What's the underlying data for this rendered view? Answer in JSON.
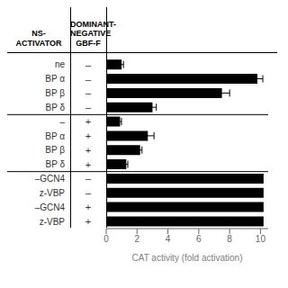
{
  "chart_data": {
    "type": "bar",
    "orientation": "horizontal",
    "column_headers": [
      "NS-\nACTIVATOR",
      "DOMINANT-\nNEGATIVE\nGBF-F"
    ],
    "categories": [
      "ne",
      "BP α",
      "BP β",
      "BP δ",
      "–",
      "BP α",
      "BP β",
      "BP δ",
      "–GCN4",
      "z-VBP",
      "–GCN4",
      "z-VBP"
    ],
    "category_signs": [
      "–",
      "–",
      "–",
      "–",
      "+",
      "+",
      "+",
      "+",
      "–",
      "–",
      "+",
      "+"
    ],
    "values": [
      1.0,
      9.8,
      7.5,
      3.0,
      0.9,
      2.7,
      2.2,
      1.3,
      10.2,
      10.2,
      10.2,
      10.2
    ],
    "errors": [
      0.12,
      0.35,
      0.5,
      0.25,
      0.09,
      0.4,
      0.12,
      0.1,
      0.0,
      0.0,
      0.0,
      0.0
    ],
    "color": "#000000",
    "xlabel": "CAT activity (fold activation)",
    "xlim": [
      0,
      10.5
    ],
    "xticks": [
      0,
      2,
      4,
      6,
      8,
      10
    ]
  }
}
